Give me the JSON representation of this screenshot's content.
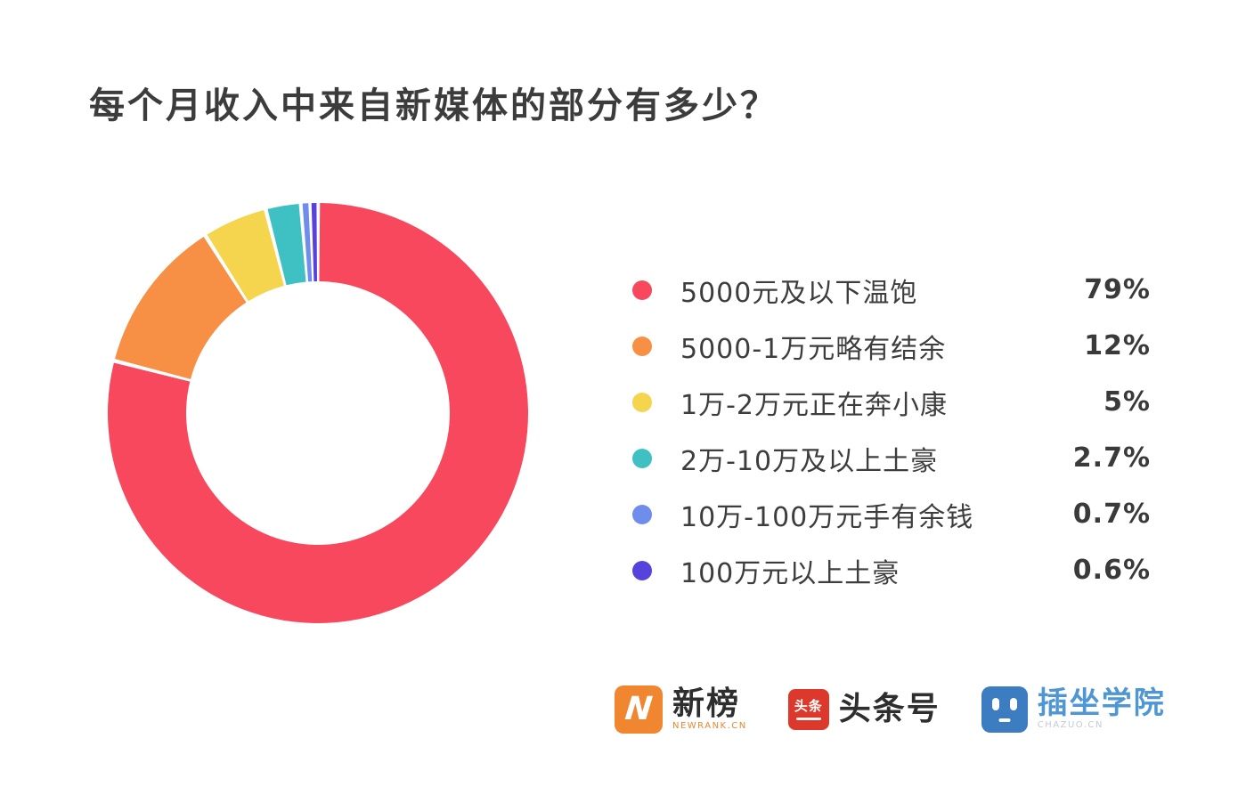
{
  "title": "每个月收入中来自新媒体的部分有多少？",
  "chart_data": {
    "type": "pie",
    "subtype": "donut",
    "title": "每个月收入中来自新媒体的部分有多少？",
    "categories": [
      "5000元及以下温饱",
      "5000-1万元略有结余",
      "1万-2万元正在奔小康",
      "2万-10万及以上土豪",
      "10万-100万元手有余钱",
      "100万元以上土豪"
    ],
    "values": [
      79,
      12,
      5,
      2.7,
      0.7,
      0.6
    ],
    "unit": "%",
    "colors": [
      "#F8485E",
      "#F79044",
      "#F5D44E",
      "#3FC1C4",
      "#6F8DEC",
      "#5742DC"
    ],
    "legend_position": "right",
    "start_angle_deg": 0,
    "direction": "clockwise",
    "donut_outer_radius": 236,
    "donut_inner_radius": 148,
    "background": "#FFFFFF"
  },
  "legend": {
    "items": [
      {
        "label": "5000元及以下温饱",
        "value": "79%",
        "color": "#F8485E"
      },
      {
        "label": "5000-1万元略有结余",
        "value": "12%",
        "color": "#F79044"
      },
      {
        "label": "1万-2万元正在奔小康",
        "value": "5%",
        "color": "#F5D44E"
      },
      {
        "label": "2万-10万及以上土豪",
        "value": "2.7%",
        "color": "#3FC1C4"
      },
      {
        "label": "10万-100万元手有余钱",
        "value": "0.7%",
        "color": "#6F8DEC"
      },
      {
        "label": "100万元以上土豪",
        "value": "0.6%",
        "color": "#5742DC"
      }
    ]
  },
  "footer": {
    "logos": [
      {
        "name": "newrank",
        "text": "新榜",
        "subtext": "NEWRANK.CN",
        "icon_letter": "N",
        "icon_color": "#F0862F",
        "accent_color": "#E8882F"
      },
      {
        "name": "toutiaohao",
        "text": "头条号",
        "icon_text": "头条",
        "icon_color": "#DC382B"
      },
      {
        "name": "chazuo-college",
        "text": "插坐学院",
        "subtext": "CHAZUO.CN",
        "icon_color": "#3C7CC0",
        "text_color": "#4E96D4"
      }
    ]
  }
}
